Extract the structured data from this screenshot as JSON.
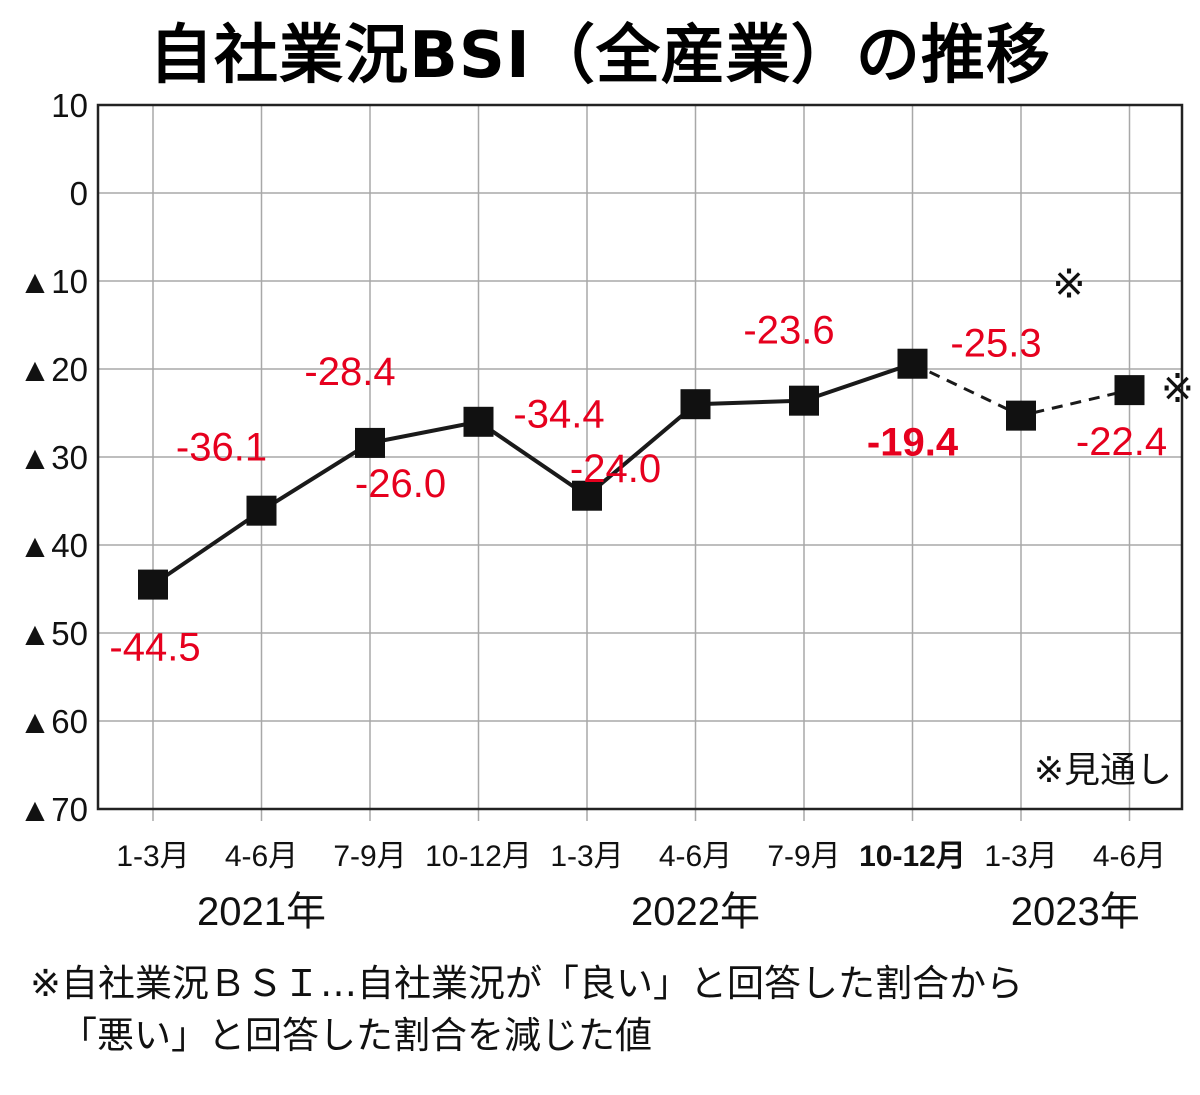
{
  "chart_data": {
    "type": "line",
    "title": "自社業況BSI（全産業）の推移",
    "ylim": [
      -70,
      10
    ],
    "y_ticks": [
      {
        "value": 10,
        "label": "10"
      },
      {
        "value": 0,
        "label": "0"
      },
      {
        "value": -10,
        "label": "▲10"
      },
      {
        "value": -20,
        "label": "▲20"
      },
      {
        "value": -30,
        "label": "▲30"
      },
      {
        "value": -40,
        "label": "▲40"
      },
      {
        "value": -50,
        "label": "▲50"
      },
      {
        "value": -60,
        "label": "▲60"
      },
      {
        "value": -70,
        "label": "▲70"
      }
    ],
    "categories": [
      "1-3月",
      "4-6月",
      "7-9月",
      "10-12月",
      "1-3月",
      "4-6月",
      "7-9月",
      "10-12月",
      "1-3月",
      "4-6月"
    ],
    "bold_category_index": 7,
    "years": [
      {
        "label": "2021年",
        "category_index": 1
      },
      {
        "label": "2022年",
        "category_index": 5
      },
      {
        "label": "2023年",
        "category_index": 8.5
      }
    ],
    "series": [
      {
        "values": [
          -44.5,
          -36.1,
          -28.4,
          -26.0,
          -34.4,
          -24.0,
          -23.6,
          -19.4,
          -25.3,
          -22.4
        ],
        "labels": [
          "-44.5",
          "-36.1",
          "-28.4",
          "-26.0",
          "-34.4",
          "-24.0",
          "-23.6",
          "-19.4",
          "-25.3",
          "-22.4"
        ],
        "forecast_from_index": 7,
        "bold_label_index": 7
      }
    ],
    "forecast_marker": "※",
    "forecast_marker_indices": [
      8,
      9
    ],
    "legend_note": "※見通し",
    "grid": true,
    "label_color": "#e6001e",
    "line_color": "#1a1a1a"
  },
  "footnote": {
    "line1": "※自社業況ＢＳＩ…自社業況が「良い」と回答した割合から",
    "line2": "「悪い」と回答した割合を減じた値"
  }
}
